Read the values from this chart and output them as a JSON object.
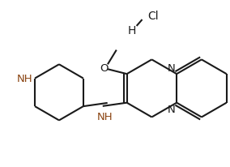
{
  "background_color": "#ffffff",
  "bond_color": "#1a1a1a",
  "heteroatom_color": "#8B4513",
  "N_color": "#1a1a1a",
  "lw": 1.5,
  "fs": 9.5,
  "fig_w": 2.84,
  "fig_h": 2.07,
  "dpi": 100,
  "xlim": [
    0,
    284
  ],
  "ylim": [
    0,
    207
  ]
}
